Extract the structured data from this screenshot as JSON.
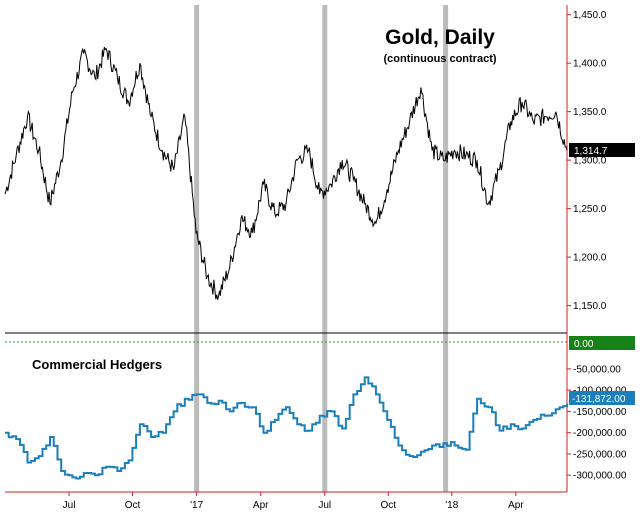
{
  "chart_data": [
    {
      "type": "line",
      "title": "Gold, Daily",
      "subtitle": "(continuous contract)",
      "ylim": [
        1130,
        1460
      ],
      "yticks": [
        1150,
        1200,
        1250,
        1300,
        1350,
        1400,
        1450
      ],
      "ytick_labels": [
        "1,150.0",
        "1,200.0",
        "1,250.0",
        "1,300.0",
        "1,350.0",
        "1,400.0",
        "1,450.0"
      ],
      "last_value": 1314.7,
      "last_value_label": "1,314.7",
      "series": [
        {
          "name": "Gold",
          "x": [
            0,
            2,
            4,
            6,
            8,
            10,
            12,
            14,
            16,
            18,
            20,
            22,
            24,
            26,
            28,
            30,
            32,
            34,
            36,
            38,
            40,
            42,
            44,
            46,
            48,
            50,
            52,
            54,
            56,
            58,
            60,
            62,
            64,
            66,
            68,
            70,
            72,
            74,
            76,
            78,
            80,
            82,
            84,
            86,
            88,
            90,
            92,
            94,
            96,
            98,
            100
          ],
          "y": [
            1265,
            1305,
            1345,
            1310,
            1255,
            1300,
            1370,
            1410,
            1385,
            1415,
            1385,
            1360,
            1400,
            1345,
            1310,
            1290,
            1345,
            1225,
            1180,
            1160,
            1190,
            1240,
            1225,
            1275,
            1245,
            1255,
            1300,
            1310,
            1265,
            1275,
            1300,
            1280,
            1255,
            1235,
            1270,
            1310,
            1340,
            1375,
            1310,
            1300,
            1310,
            1305,
            1300,
            1255,
            1290,
            1340,
            1360,
            1340,
            1345,
            1350,
            1310
          ]
        }
      ]
    },
    {
      "type": "line",
      "title": "Commercial Hedgers",
      "ylim": [
        -330000,
        25000
      ],
      "yticks": [
        0,
        -50000,
        -100000,
        -150000,
        -200000,
        -250000,
        -300000
      ],
      "ytick_labels": [
        "0.00",
        "-50,000.00",
        "-100,000.00",
        "-150,000.00",
        "-200,000.00",
        "-250,000.00",
        "-300,000.00"
      ],
      "zero_line_label": "0.00",
      "last_value": -131872,
      "last_value_label": "-131,872.00",
      "series": [
        {
          "name": "Commercial Hedgers",
          "x": [
            0,
            2,
            4,
            6,
            8,
            10,
            12,
            14,
            16,
            18,
            20,
            22,
            24,
            26,
            28,
            30,
            32,
            34,
            36,
            38,
            40,
            42,
            44,
            46,
            48,
            50,
            52,
            54,
            56,
            58,
            60,
            62,
            64,
            66,
            68,
            70,
            72,
            74,
            76,
            78,
            80,
            82,
            84,
            86,
            88,
            90,
            92,
            94,
            96,
            98,
            100
          ],
          "y": [
            -200000,
            -215000,
            -270000,
            -255000,
            -210000,
            -290000,
            -305000,
            -295000,
            -300000,
            -280000,
            -290000,
            -265000,
            -180000,
            -210000,
            -200000,
            -150000,
            -120000,
            -110000,
            -130000,
            -125000,
            -150000,
            -130000,
            -140000,
            -200000,
            -170000,
            -140000,
            -180000,
            -195000,
            -160000,
            -150000,
            -190000,
            -110000,
            -70000,
            -110000,
            -170000,
            -230000,
            -255000,
            -245000,
            -230000,
            -225000,
            -230000,
            -240000,
            -120000,
            -140000,
            -195000,
            -180000,
            -190000,
            -170000,
            -160000,
            -145000,
            -132000
          ]
        }
      ]
    },
    {
      "type": "axis",
      "xlabels": [
        "Jul",
        "Oct",
        "'17",
        "Apr",
        "Jul",
        "Oct",
        "'18",
        "Apr"
      ],
      "xlabel_positions": [
        11.4,
        22.7,
        34.1,
        45.5,
        56.9,
        68.2,
        79.5,
        90.9
      ],
      "highlight_positions": [
        34.1,
        56.9,
        78.4
      ],
      "x_range": [
        0,
        100
      ]
    }
  ],
  "colors": {
    "price_line": "#000000",
    "hedger_line": "#1a7fba",
    "axis_line": "#cc2222",
    "highlight_band": "#bbbbbb",
    "zero_line": "#3a8a3a",
    "zero_tag": "#178217",
    "hedger_tag": "#1a7fba",
    "price_tag": "#000000"
  }
}
